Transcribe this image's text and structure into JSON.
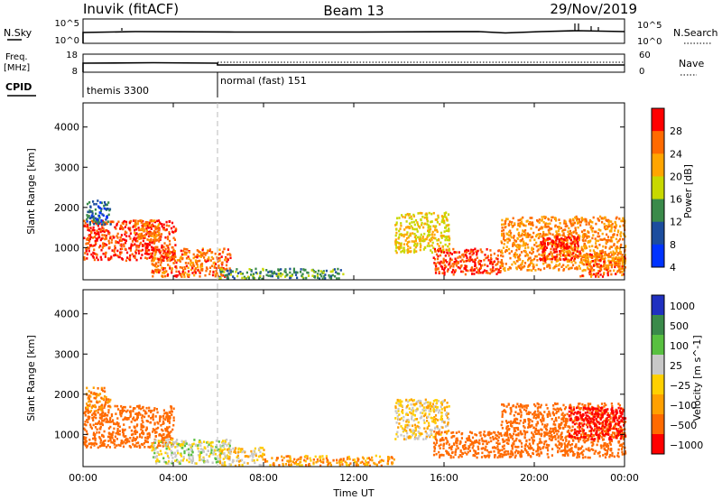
{
  "header": {
    "title": "Inuvik (fitACF)",
    "beam": "Beam 13",
    "date": "29/Nov/2019"
  },
  "strips": {
    "sky_label": "N.Sky",
    "sky_ticks": [
      "10^5",
      "10^0"
    ],
    "search_ticks": [
      "10^5",
      "10^0"
    ],
    "search_label": "N.Search",
    "freq_label": "Freq.",
    "freq_unit": "[MHz]",
    "freq_ticks": [
      "18",
      "8"
    ],
    "nave_ticks": [
      "60",
      "0"
    ],
    "nave_label": "Nave",
    "cpid_label": "CPID",
    "cpid_segments": [
      "themis 3300",
      "normal (fast) 151"
    ]
  },
  "chart_data": [
    {
      "type": "heatmap",
      "name": "power",
      "ylabel": "Slant Range [km]",
      "xlabel": "",
      "ylim": [
        200,
        4600
      ],
      "yticks": [
        1000,
        2000,
        3000,
        4000
      ],
      "colorbar_label": "Power [dB]",
      "colorbar_ticks": [
        "28",
        "24",
        "20",
        "16",
        "12",
        "8",
        "4"
      ],
      "colorbar_colors": [
        "#ff0000",
        "#ff6a00",
        "#ffa500",
        "#c8d800",
        "#3a8a4a",
        "#1c4d9e",
        "#0033ff"
      ],
      "x_range_hours": [
        0,
        24
      ],
      "scatter_regions": [
        {
          "t": [
            0.0,
            4.1
          ],
          "r": [
            700,
            1700
          ],
          "level": 26
        },
        {
          "t": [
            0.1,
            1.2
          ],
          "r": [
            1600,
            2200
          ],
          "level": 8
        },
        {
          "t": [
            2.2,
            3.4
          ],
          "r": [
            1200,
            1700
          ],
          "level": 22
        },
        {
          "t": [
            3.0,
            6.5
          ],
          "r": [
            300,
            1000
          ],
          "level": 24
        },
        {
          "t": [
            6.0,
            11.5
          ],
          "r": [
            250,
            500
          ],
          "level": 12
        },
        {
          "t": [
            13.8,
            16.2
          ],
          "r": [
            900,
            1900
          ],
          "level": 18
        },
        {
          "t": [
            15.5,
            18.5
          ],
          "r": [
            350,
            1000
          ],
          "level": 26
        },
        {
          "t": [
            18.5,
            24.0
          ],
          "r": [
            450,
            1800
          ],
          "level": 22
        },
        {
          "t": [
            20.2,
            22.0
          ],
          "r": [
            700,
            1300
          ],
          "level": 28
        },
        {
          "t": [
            22.0,
            24.0
          ],
          "r": [
            300,
            900
          ],
          "level": 24
        }
      ]
    },
    {
      "type": "heatmap",
      "name": "velocity",
      "ylabel": "Slant Range [km]",
      "xlabel": "Time UT",
      "ylim": [
        200,
        4600
      ],
      "yticks": [
        1000,
        2000,
        3000,
        4000
      ],
      "xticks": [
        "00:00",
        "04:00",
        "08:00",
        "12:00",
        "16:00",
        "20:00",
        "00:00"
      ],
      "colorbar_label": "Velocity [m s^-1]",
      "colorbar_ticks": [
        "1000",
        "500",
        "100",
        "25",
        "−25",
        "−100",
        "−500",
        "−1000"
      ],
      "colorbar_colors": [
        "#2030c0",
        "#3a8a4a",
        "#58c040",
        "#c8c8c8",
        "#ffd000",
        "#ffa000",
        "#ff6a00",
        "#ff0000"
      ],
      "x_range_hours": [
        0,
        24
      ],
      "scatter_regions": [
        {
          "t": [
            0.0,
            4.0
          ],
          "r": [
            700,
            1750
          ],
          "level": -200
        },
        {
          "t": [
            0.1,
            1.2
          ],
          "r": [
            1600,
            2200
          ],
          "level": -100
        },
        {
          "t": [
            3.0,
            6.5
          ],
          "r": [
            300,
            900
          ],
          "level": 60
        },
        {
          "t": [
            6.0,
            8.0
          ],
          "r": [
            250,
            700
          ],
          "level": 0
        },
        {
          "t": [
            8.0,
            13.8
          ],
          "r": [
            250,
            500
          ],
          "level": -80
        },
        {
          "t": [
            13.8,
            16.2
          ],
          "r": [
            900,
            1900
          ],
          "level": 0
        },
        {
          "t": [
            15.5,
            18.5
          ],
          "r": [
            450,
            1100
          ],
          "level": -300
        },
        {
          "t": [
            18.5,
            24.0
          ],
          "r": [
            450,
            1800
          ],
          "level": -300
        },
        {
          "t": [
            21.5,
            24.0
          ],
          "r": [
            900,
            1700
          ],
          "level": -700
        }
      ]
    }
  ]
}
